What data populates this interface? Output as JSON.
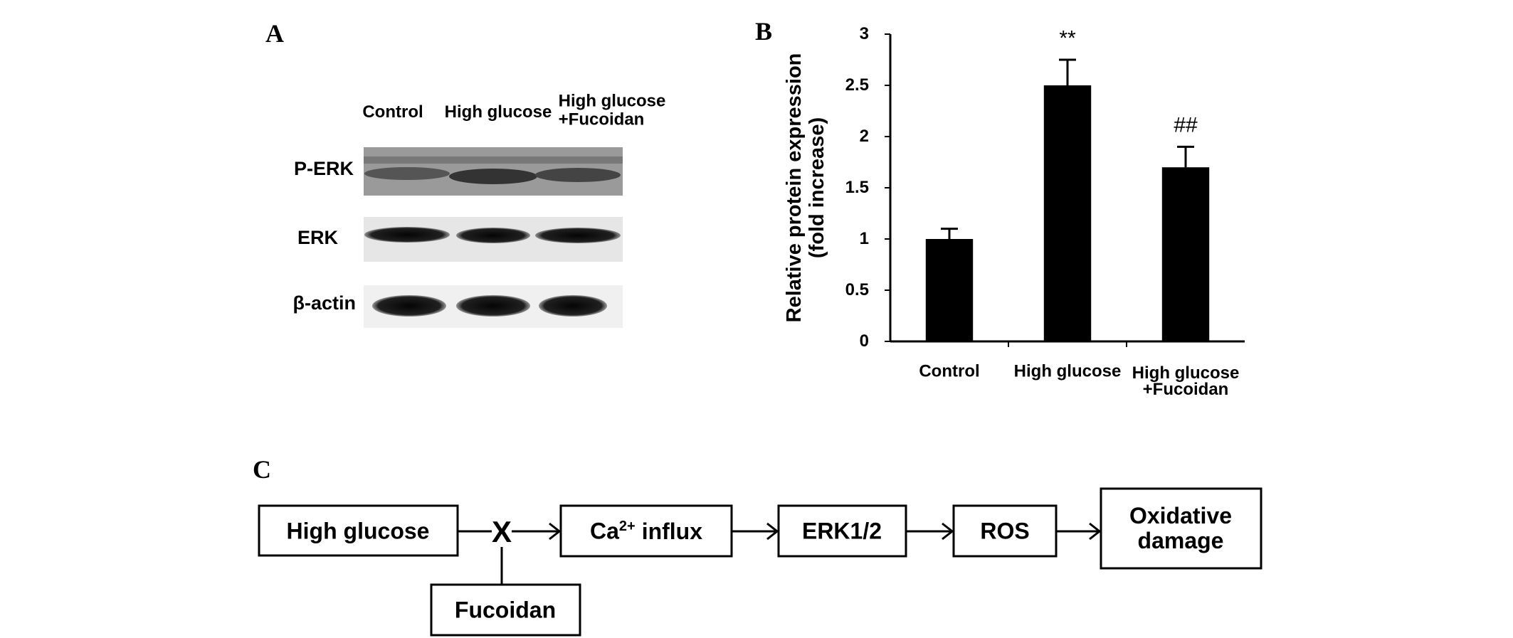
{
  "panel_a": {
    "letter": "A",
    "lanes": [
      "Control",
      "High glucose",
      "High glucose\n+Fucoidan"
    ],
    "rows": [
      "P-ERK",
      "ERK",
      "β-actin"
    ]
  },
  "chart_data": {
    "type": "bar",
    "letter": "B",
    "ylabel": "Relative protein expression\n(fold increase)",
    "categories": [
      "Control",
      "High glucose",
      "High glucose\n+Fucoidan"
    ],
    "values": [
      1.0,
      2.5,
      1.7
    ],
    "errors": [
      0.1,
      0.25,
      0.2
    ],
    "annotations": [
      null,
      "**",
      "##"
    ],
    "color": "#000000",
    "ylim": [
      0,
      3
    ],
    "yticks": [
      0,
      0.5,
      1,
      1.5,
      2,
      2.5,
      3
    ],
    "grid": false
  },
  "panel_c": {
    "letter": "C",
    "block_mark": "X",
    "nodes": [
      {
        "label": "High glucose"
      },
      {
        "label": "Fucoidan"
      },
      {
        "base": "Ca",
        "sup": "2+",
        "rest": "influx"
      },
      {
        "label": "ERK1/2"
      },
      {
        "label": "ROS"
      },
      {
        "label": "Oxidative\ndamage"
      }
    ]
  }
}
